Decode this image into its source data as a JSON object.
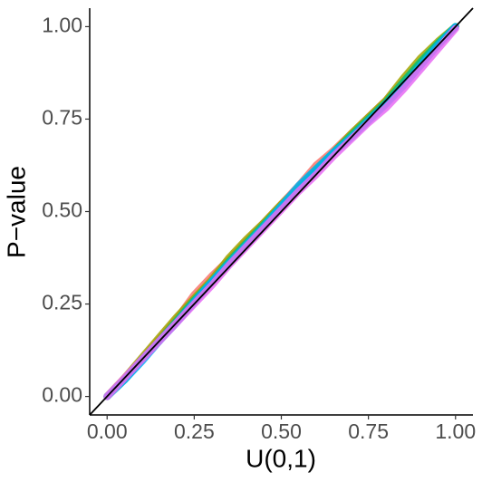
{
  "chart_data": {
    "type": "line",
    "x_label": "U(0,1)",
    "y_label": "P−value",
    "x": [
      0,
      0.05,
      0.1,
      0.15,
      0.2,
      0.25,
      0.3,
      0.35,
      0.4,
      0.45,
      0.5,
      0.55,
      0.6,
      0.65,
      0.7,
      0.75,
      0.8,
      0.85,
      0.9,
      0.95,
      1
    ],
    "series": [
      {
        "color": "#F8766D",
        "values": [
          0,
          0.05,
          0.1,
          0.155,
          0.21,
          0.275,
          0.325,
          0.37,
          0.42,
          0.47,
          0.52,
          0.57,
          0.625,
          0.665,
          0.71,
          0.755,
          0.8,
          0.85,
          0.9,
          0.95,
          1
        ]
      },
      {
        "color": "#A3A500",
        "values": [
          0,
          0.05,
          0.105,
          0.16,
          0.215,
          0.265,
          0.315,
          0.375,
          0.425,
          0.47,
          0.52,
          0.565,
          0.615,
          0.66,
          0.71,
          0.755,
          0.8,
          0.86,
          0.915,
          0.96,
          1
        ]
      },
      {
        "color": "#00BF7D",
        "values": [
          0,
          0.045,
          0.1,
          0.15,
          0.205,
          0.26,
          0.31,
          0.365,
          0.415,
          0.465,
          0.515,
          0.56,
          0.61,
          0.66,
          0.705,
          0.75,
          0.795,
          0.85,
          0.905,
          0.955,
          1
        ]
      },
      {
        "color": "#00B0F6",
        "values": [
          0,
          0.045,
          0.095,
          0.15,
          0.2,
          0.255,
          0.31,
          0.36,
          0.41,
          0.46,
          0.515,
          0.57,
          0.615,
          0.66,
          0.7,
          0.745,
          0.79,
          0.84,
          0.895,
          0.95,
          1
        ]
      },
      {
        "color": "#E76BF3",
        "values": [
          0,
          0.05,
          0.1,
          0.15,
          0.2,
          0.25,
          0.3,
          0.355,
          0.405,
          0.455,
          0.505,
          0.555,
          0.6,
          0.65,
          0.695,
          0.74,
          0.78,
          0.83,
          0.885,
          0.94,
          0.995
        ]
      }
    ],
    "xlim": [
      -0.05,
      1.05
    ],
    "ylim": [
      -0.05,
      1.05
    ],
    "xticks": [
      {
        "value": 0,
        "label": "0.00"
      },
      {
        "value": 0.25,
        "label": "0.25"
      },
      {
        "value": 0.5,
        "label": "0.50"
      },
      {
        "value": 0.75,
        "label": "0.75"
      },
      {
        "value": 1,
        "label": "1.00"
      }
    ],
    "yticks": [
      {
        "value": 0,
        "label": "0.00"
      },
      {
        "value": 0.25,
        "label": "0.25"
      },
      {
        "value": 0.5,
        "label": "0.50"
      },
      {
        "value": 0.75,
        "label": "0.75"
      },
      {
        "value": 1,
        "label": "1.00"
      }
    ],
    "grid": false
  }
}
